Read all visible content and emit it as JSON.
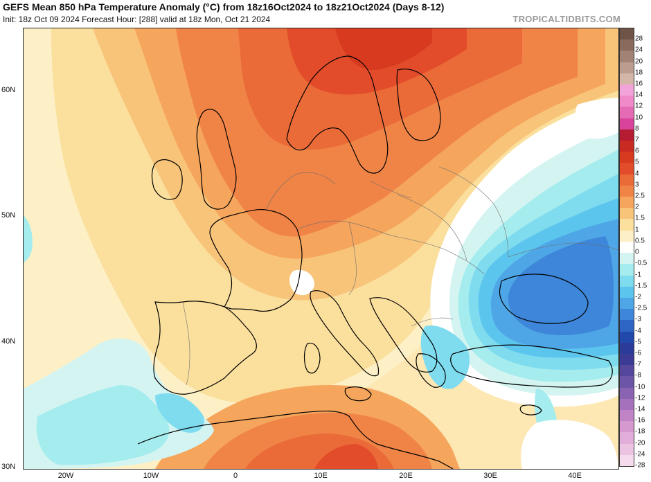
{
  "header": {
    "title": "GEFS Mean 850 hPa Temperature Anomaly (°C) from 18z16Oct2024 to 18z21Oct2024 (Days 8-12)",
    "subtitle": "Init: 18z Oct 09 2024   Forecast Hour: [288]   valid at 18z Mon, Oct 21 2024",
    "brand": "TROPICALTIDBITS.COM"
  },
  "axes": {
    "lat_labels": [
      "60N",
      "50N",
      "40N",
      "30N"
    ],
    "lon_labels": [
      "20W",
      "10W",
      "0",
      "10E",
      "20E",
      "30E",
      "40E"
    ]
  },
  "colorbar": {
    "labels": [
      "28",
      "24",
      "20",
      "18",
      "16",
      "14",
      "12",
      "10",
      "8",
      "7",
      "6",
      "5",
      "4",
      "3",
      "2.5",
      "2",
      "1.5",
      "1",
      "0.5",
      "0",
      "-0.5",
      "-1",
      "-1.5",
      "-2",
      "-2.5",
      "-3",
      "-4",
      "-5",
      "-6",
      "-7",
      "-8",
      "-10",
      "-12",
      "-14",
      "-16",
      "-18",
      "-20",
      "-24",
      "-28"
    ],
    "colors": [
      "#6e5446",
      "#8a6a5c",
      "#a28274",
      "#bb9c8e",
      "#d3b6a8",
      "#f2a3d8",
      "#f08ac9",
      "#e66bb5",
      "#d8449b",
      "#b51b31",
      "#c92a22",
      "#d73a1f",
      "#e24c2a",
      "#ea6a38",
      "#f08446",
      "#f5a55c",
      "#f8c47a",
      "#fbdf9d",
      "#fdf0c6",
      "#ffffff",
      "#d4f4f2",
      "#a5ecef",
      "#7fdcef",
      "#5cc5ee",
      "#4fa6e6",
      "#3d86d9",
      "#2e66c6",
      "#2149ac",
      "#2a3c98",
      "#3b3a94",
      "#55479c",
      "#6c55a6",
      "#8a63b3",
      "#a571bd",
      "#bf83c6",
      "#d598cf",
      "#e2aed9",
      "#ecc4e2",
      "#f5dbec"
    ]
  },
  "map_fields": {
    "colors": {
      "sea_base": "#fde7b3",
      "anom_05": "#fdf0c6",
      "anom_1": "#fbdf9d",
      "anom_15": "#f8c47a",
      "anom_2": "#f5a55c",
      "anom_25": "#f08446",
      "anom_3": "#ea6a38",
      "anom_4": "#e24c2a",
      "anom_5": "#d73a1f",
      "anom_6": "#c92a22",
      "neutral": "#ffffff",
      "neg_05": "#d4f4f2",
      "neg_1": "#a5ecef",
      "neg_15": "#7fdcef",
      "neg_2": "#5cc5ee",
      "neg_25": "#4fa6e6",
      "neg_3": "#3d86d9",
      "neg_4": "#2e66c6",
      "coast": "#000000",
      "border": "#6d6d6d"
    }
  }
}
